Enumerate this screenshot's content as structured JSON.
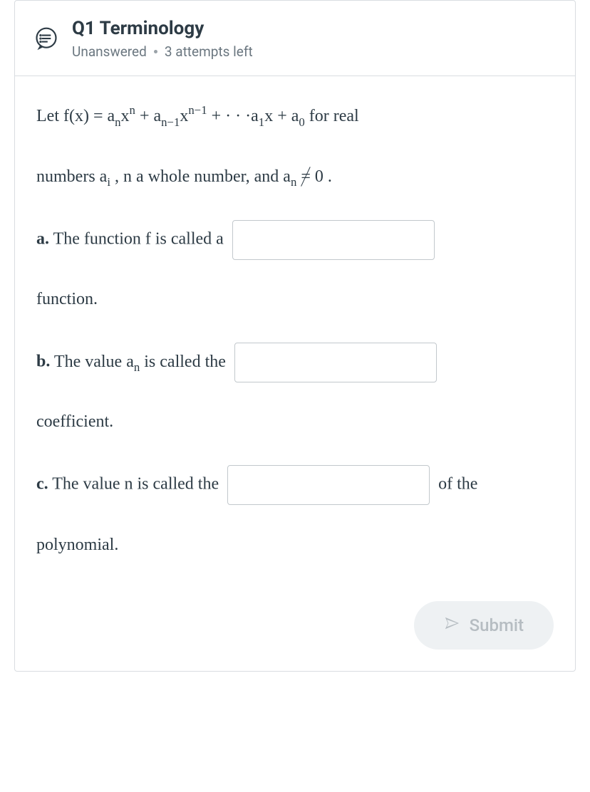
{
  "colors": {
    "border": "#d9dde1",
    "text": "#2d3b45",
    "muted": "#6b7780",
    "inputBorder": "#c2c8cc",
    "submitBg": "#eef1f3",
    "submitText": "#b6bdc2"
  },
  "header": {
    "title": "Q1 Terminology",
    "status": "Unanswered",
    "attempts": "3 attempts left",
    "icon": "quiz-bubble-icon"
  },
  "intro": {
    "prefix": "Let ",
    "fn_lhs": "f(x) = ",
    "poly_terms_html": "a<span class=\"sub\">n</span>x<span class=\"sup\">n</span> + a<span class=\"sub\">n−1</span>x<span class=\"sup\">n−1</span> + · · ·a<span class=\"sub\">1</span>x + a<span class=\"sub\">0</span>",
    "suffix": " for real"
  },
  "intro2": {
    "line_html": "numbers a<span class=\"sub\">i</span> , n a whole number, and a<span class=\"sub\">n</span> <span class=\"neq\">=</span> 0 ."
  },
  "parts": {
    "a": {
      "label": "a.",
      "before": " The function f is called a ",
      "after": "function."
    },
    "b": {
      "label": "b.",
      "before_html": " The value a<span class=\"sub\">n</span> is called the ",
      "after": "coefficient."
    },
    "c": {
      "label": "c.",
      "before": " The value n is called the ",
      "mid_after": " of the",
      "after2": "polynomial."
    }
  },
  "inputs": {
    "a_value": "",
    "b_value": "",
    "c_value": ""
  },
  "submit": {
    "label": "Submit",
    "icon": "paper-plane-icon"
  }
}
